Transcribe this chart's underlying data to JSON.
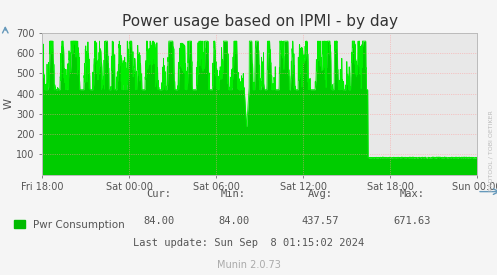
{
  "title": "Power usage based on IPMI - by day",
  "ylabel": "W",
  "line_color": "#00ee00",
  "fill_color": "#00cc00",
  "bg_color": "#f5f5f5",
  "plot_bg_color": "#e8e8e8",
  "grid_color": "#ff9999",
  "border_color": "#aaaaaa",
  "ylim": [
    0,
    700
  ],
  "yticks": [
    100,
    200,
    300,
    400,
    500,
    600,
    700
  ],
  "xlabel_ticks": [
    "Fri 18:00",
    "Sat 00:00",
    "Sat 06:00",
    "Sat 12:00",
    "Sat 18:00",
    "Sun 00:00"
  ],
  "cur": "84.00",
  "min": "84.00",
  "avg": "437.57",
  "max": "671.63",
  "last_update": "Last update: Sun Sep  8 01:15:02 2024",
  "legend_label": "Pwr Consumption",
  "munin_version": "Munin 2.0.73",
  "rrdtool_label": "RRDTOOL / TOBI OETIKER",
  "title_fontsize": 11,
  "axis_fontsize": 7,
  "legend_fontsize": 7.5,
  "stats_fontsize": 7.5
}
